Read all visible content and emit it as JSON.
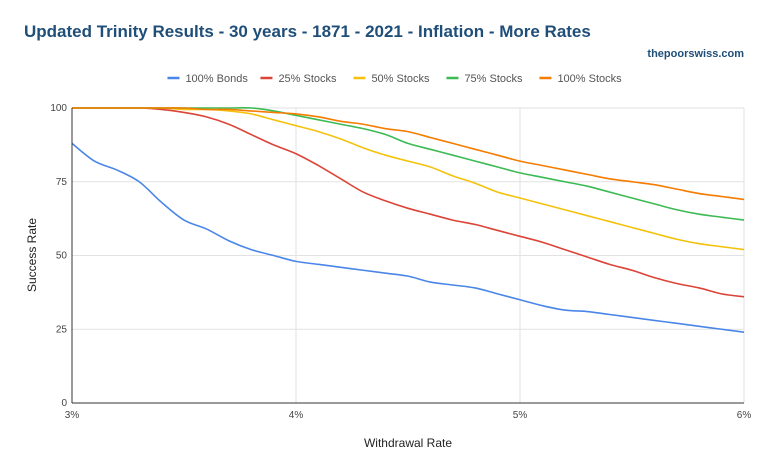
{
  "header": {
    "title": "Updated Trinity Results - 30 years - 1871 - 2021 - Inflation - More Rates",
    "source": "thepoorswiss.com"
  },
  "chart_data": {
    "type": "line",
    "title": "Updated Trinity Results - 30 years - 1871 - 2021 - Inflation - More Rates",
    "xlabel": "Withdrawal Rate",
    "ylabel": "Success Rate",
    "xlim": [
      3,
      6
    ],
    "ylim": [
      0,
      100
    ],
    "x_ticks": [
      {
        "value": 3,
        "label": "3%"
      },
      {
        "value": 4,
        "label": "4%"
      },
      {
        "value": 5,
        "label": "5%"
      },
      {
        "value": 6,
        "label": "6%"
      }
    ],
    "y_ticks": [
      {
        "value": 0,
        "label": "0"
      },
      {
        "value": 25,
        "label": "25"
      },
      {
        "value": 50,
        "label": "50"
      },
      {
        "value": 75,
        "label": "75"
      },
      {
        "value": 100,
        "label": "100"
      }
    ],
    "grid": true,
    "legend_position": "top",
    "x": [
      3.0,
      3.1,
      3.2,
      3.3,
      3.4,
      3.5,
      3.6,
      3.7,
      3.8,
      3.9,
      4.0,
      4.1,
      4.2,
      4.3,
      4.4,
      4.5,
      4.6,
      4.7,
      4.8,
      4.9,
      5.0,
      5.1,
      5.2,
      5.3,
      5.4,
      5.5,
      5.6,
      5.7,
      5.8,
      5.9,
      6.0
    ],
    "series": [
      {
        "name": "100% Bonds",
        "color": "#4a86e8",
        "values": [
          88,
          82,
          79,
          75,
          68,
          62,
          59,
          55,
          52,
          50,
          48,
          47,
          46,
          45,
          44,
          43,
          41,
          40,
          39,
          37,
          35,
          33,
          31.5,
          31,
          30,
          29,
          28,
          27,
          26,
          25,
          24
        ]
      },
      {
        "name": "25% Stocks",
        "color": "#db4437",
        "values": [
          100,
          100,
          100,
          100,
          99.5,
          98.5,
          97,
          94.5,
          91,
          87.5,
          84.5,
          80.5,
          76,
          71.5,
          68.5,
          66,
          64,
          62,
          60.5,
          58.5,
          56.5,
          54.5,
          52,
          49.5,
          47,
          45,
          42.5,
          40.5,
          39,
          37,
          36
        ]
      },
      {
        "name": "50% Stocks",
        "color": "#f4c20d",
        "values": [
          100,
          100,
          100,
          100,
          100,
          99.5,
          99.5,
          99,
          98,
          96,
          94,
          92,
          89.5,
          86.5,
          84,
          82,
          80,
          77,
          74.5,
          71.5,
          69.5,
          67.5,
          65.5,
          63.5,
          61.5,
          59.5,
          57.5,
          55.5,
          54,
          53,
          52
        ]
      },
      {
        "name": "75% Stocks",
        "color": "#3cba54",
        "values": [
          100,
          100,
          100,
          100,
          100,
          100,
          100,
          100,
          100,
          99,
          97.5,
          96,
          94.5,
          93,
          91,
          88,
          86,
          84,
          82,
          80,
          78,
          76.5,
          75,
          73.5,
          71.5,
          69.5,
          67.5,
          65.5,
          64,
          63,
          62
        ]
      },
      {
        "name": "100% Stocks",
        "color": "#f57c00",
        "values": [
          100,
          100,
          100,
          100,
          100,
          100,
          99.5,
          99.5,
          99,
          98.5,
          98,
          97,
          95.5,
          94.5,
          93,
          92,
          90,
          88,
          86,
          84,
          82,
          80.5,
          79,
          77.5,
          76,
          75,
          74,
          72.5,
          71,
          70,
          69
        ]
      }
    ]
  }
}
